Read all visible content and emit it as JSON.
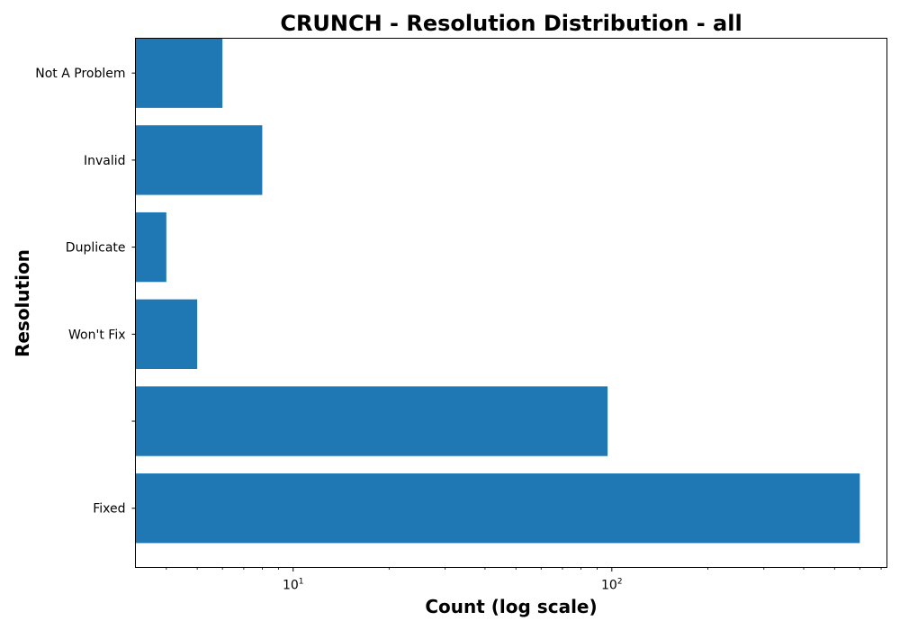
{
  "chart_data": {
    "type": "bar",
    "orientation": "horizontal",
    "title": "CRUNCH - Resolution Distribution - all",
    "xlabel": "Count (log scale)",
    "ylabel": "Resolution",
    "x_scale": "log",
    "xlim": [
      3.2,
      730
    ],
    "x_major_ticks": [
      {
        "value": 10,
        "base": "10",
        "exp": "1"
      },
      {
        "value": 100,
        "base": "10",
        "exp": "2"
      }
    ],
    "grid": false,
    "bar_color": "#1f77b4",
    "categories": [
      "Fixed",
      "",
      "Won't Fix",
      "Duplicate",
      "Invalid",
      "Not A Problem"
    ],
    "values": [
      600,
      97,
      5,
      4,
      8,
      6
    ]
  }
}
